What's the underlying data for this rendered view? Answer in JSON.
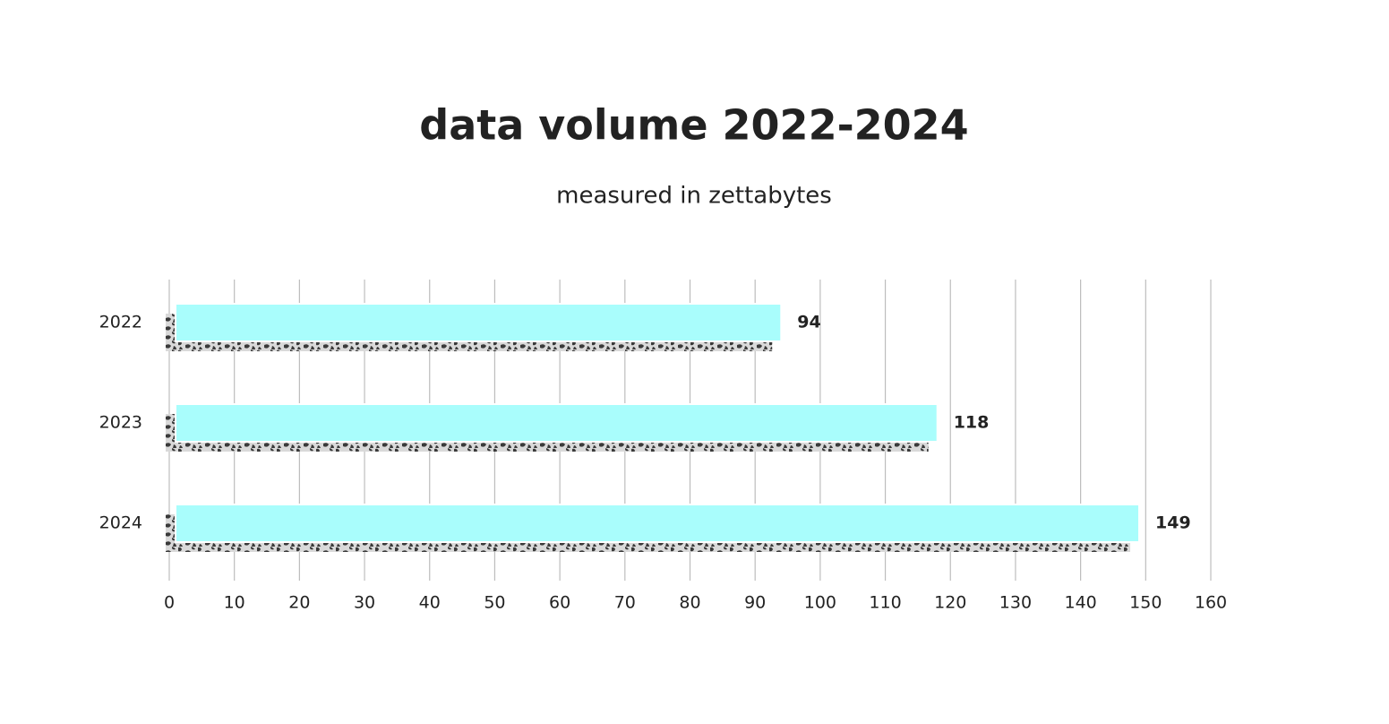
{
  "chart_data": {
    "type": "hbar",
    "title": "data volume 2022-2024",
    "subtitle": "measured in zettabytes",
    "categories": [
      "2022",
      "2023",
      "2024"
    ],
    "values": [
      94,
      118,
      149
    ],
    "color": "#a9fdfc",
    "xlim": [
      0,
      160
    ],
    "xticks": [
      0,
      10,
      20,
      30,
      40,
      50,
      60,
      70,
      80,
      90,
      100,
      110,
      120,
      130,
      140,
      150,
      160
    ],
    "grid": true
  }
}
